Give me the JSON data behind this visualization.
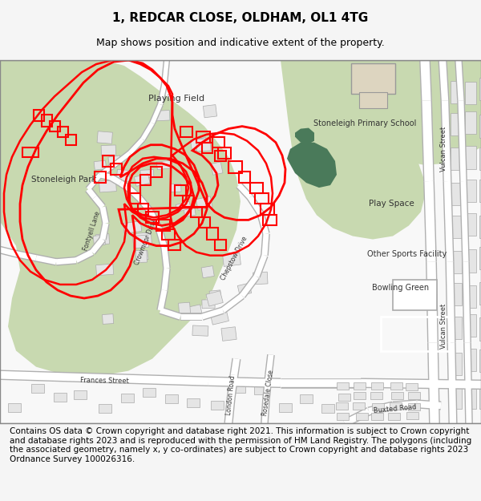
{
  "title": "1, REDCAR CLOSE, OLDHAM, OL1 4TG",
  "subtitle": "Map shows position and indicative extent of the property.",
  "footer": "Contains OS data © Crown copyright and database right 2021. This information is subject to Crown copyright and database rights 2023 and is reproduced with the permission of HM Land Registry. The polygons (including the associated geometry, namely x, y co-ordinates) are subject to Crown copyright and database rights 2023 Ordnance Survey 100026316.",
  "background_color": "#f5f5f5",
  "map_bg": "#f8f8f8",
  "green_light": "#c8d9b0",
  "green_dark": "#4a7a5a",
  "building_fill": "#ddd5c0",
  "road_color": "#ffffff",
  "road_border": "#b0b0b0",
  "red_line": "#ff0000",
  "title_fontsize": 11,
  "subtitle_fontsize": 9,
  "footer_fontsize": 7.5,
  "label_fontsize": 8
}
